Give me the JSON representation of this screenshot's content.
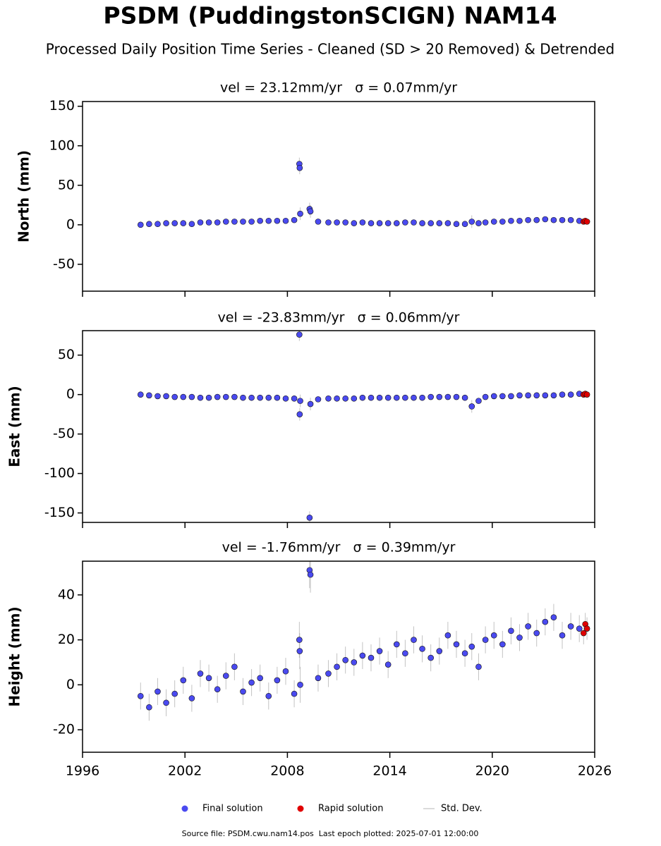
{
  "title": "PSDM (PuddingstonSCIGN) NAM14",
  "subtitle": "Processed Daily Position Time Series - Cleaned (SD > 20 Removed) & Detrended",
  "legend": [
    {
      "name": "Final solution",
      "color": "#4a4af0",
      "kind": "marker"
    },
    {
      "name": "Rapid solution",
      "color": "#e00000",
      "kind": "marker"
    },
    {
      "name": "Std. Dev.",
      "color": "#cfcfcf",
      "kind": "line"
    }
  ],
  "footer": "Source file: PSDM.cwu.nam14.pos  Last epoch plotted: 2025-07-01 12:00:00",
  "chart_data": [
    {
      "type": "scatter",
      "title": "vel = 23.12mm/yr   σ = 0.07mm/yr",
      "y_label": "North (mm)",
      "xlim": [
        1996,
        2026
      ],
      "xticks": [
        1996,
        2002,
        2008,
        2014,
        2020,
        2026
      ],
      "ylim": [
        -84,
        156
      ],
      "yticks": [
        -50,
        0,
        50,
        100,
        150
      ],
      "series": [
        {
          "color": "#4a4af0",
          "error_color": "#9a9a9a",
          "x": [
            1999.4,
            1999.9,
            2000.4,
            2000.9,
            2001.4,
            2001.9,
            2002.4,
            2002.9,
            2003.4,
            2003.9,
            2004.4,
            2004.9,
            2005.4,
            2005.9,
            2006.4,
            2006.9,
            2007.4,
            2007.9,
            2008.4,
            2008.7,
            2008.72,
            2008.75,
            2009.3,
            2009.35,
            2009.8,
            2010.4,
            2010.9,
            2011.4,
            2011.9,
            2012.4,
            2012.9,
            2013.4,
            2013.9,
            2014.4,
            2014.9,
            2015.4,
            2015.9,
            2016.4,
            2016.9,
            2017.4,
            2017.9,
            2018.4,
            2018.8,
            2019.2,
            2019.6,
            2020.1,
            2020.6,
            2021.1,
            2021.6,
            2022.1,
            2022.6,
            2023.1,
            2023.6,
            2024.1,
            2024.6,
            2025.1
          ],
          "values": [
            0,
            1,
            1,
            2,
            2,
            2,
            1,
            3,
            3,
            3,
            4,
            4,
            4,
            4,
            5,
            5,
            5,
            5,
            6,
            77,
            72,
            14,
            20,
            17,
            4,
            3,
            3,
            3,
            2,
            3,
            2,
            2,
            2,
            2,
            3,
            3,
            2,
            2,
            2,
            2,
            1,
            1,
            4,
            2,
            3,
            4,
            4,
            5,
            5,
            6,
            6,
            7,
            6,
            6,
            6,
            5
          ],
          "errors": [
            3,
            3,
            3,
            3,
            3,
            3,
            3,
            3,
            3,
            3,
            3,
            3,
            3,
            3,
            3,
            3,
            3,
            3,
            3,
            8,
            8,
            8,
            8,
            8,
            3,
            3,
            3,
            3,
            3,
            3,
            3,
            3,
            3,
            3,
            3,
            3,
            3,
            3,
            3,
            3,
            3,
            3,
            8,
            3,
            3,
            3,
            3,
            3,
            3,
            3,
            3,
            3,
            3,
            3,
            3,
            3
          ]
        },
        {
          "color": "#e00000",
          "error_color": "#9a9a9a",
          "x": [
            2025.35,
            2025.45,
            2025.55
          ],
          "values": [
            4,
            5,
            4
          ],
          "errors": [
            2,
            2,
            2
          ]
        }
      ]
    },
    {
      "type": "scatter",
      "title": "vel = -23.83mm/yr   σ = 0.06mm/yr",
      "y_label": "East (mm)",
      "xlim": [
        1996,
        2026
      ],
      "xticks": [
        1996,
        2002,
        2008,
        2014,
        2020,
        2026
      ],
      "ylim": [
        -162,
        81
      ],
      "yticks": [
        -150,
        -100,
        -50,
        0,
        50
      ],
      "series": [
        {
          "color": "#4a4af0",
          "error_color": "#9a9a9a",
          "x": [
            1999.4,
            1999.9,
            2000.4,
            2000.9,
            2001.4,
            2001.9,
            2002.4,
            2002.9,
            2003.4,
            2003.9,
            2004.4,
            2004.9,
            2005.4,
            2005.9,
            2006.4,
            2006.9,
            2007.4,
            2007.9,
            2008.4,
            2008.7,
            2008.72,
            2008.75,
            2009.3,
            2009.35,
            2009.8,
            2010.4,
            2010.9,
            2011.4,
            2011.9,
            2012.4,
            2012.9,
            2013.4,
            2013.9,
            2014.4,
            2014.9,
            2015.4,
            2015.9,
            2016.4,
            2016.9,
            2017.4,
            2017.9,
            2018.4,
            2018.8,
            2019.2,
            2019.6,
            2020.1,
            2020.6,
            2021.1,
            2021.6,
            2022.1,
            2022.6,
            2023.1,
            2023.6,
            2024.1,
            2024.6,
            2025.1
          ],
          "values": [
            0,
            -1,
            -2,
            -2,
            -3,
            -3,
            -3,
            -4,
            -4,
            -3,
            -3,
            -3,
            -4,
            -4,
            -4,
            -4,
            -4,
            -5,
            -5,
            76,
            -25,
            -8,
            -156,
            -12,
            -6,
            -5,
            -5,
            -5,
            -5,
            -4,
            -4,
            -4,
            -4,
            -4,
            -4,
            -4,
            -4,
            -3,
            -3,
            -3,
            -3,
            -4,
            -15,
            -8,
            -3,
            -2,
            -2,
            -2,
            -1,
            -1,
            -1,
            -1,
            -1,
            0,
            0,
            1
          ],
          "errors": [
            3,
            3,
            3,
            3,
            3,
            3,
            3,
            3,
            3,
            3,
            3,
            3,
            3,
            3,
            3,
            3,
            3,
            3,
            3,
            8,
            8,
            8,
            8,
            8,
            3,
            3,
            3,
            3,
            3,
            3,
            3,
            3,
            3,
            3,
            3,
            3,
            3,
            3,
            3,
            3,
            3,
            3,
            8,
            3,
            3,
            3,
            3,
            3,
            3,
            3,
            3,
            3,
            3,
            3,
            3,
            3
          ]
        },
        {
          "color": "#e00000",
          "error_color": "#9a9a9a",
          "x": [
            2025.35,
            2025.45,
            2025.55
          ],
          "values": [
            0,
            1,
            0
          ],
          "errors": [
            2,
            2,
            2
          ]
        }
      ]
    },
    {
      "type": "scatter",
      "title": "vel = -1.76mm/yr   σ = 0.39mm/yr",
      "y_label": "Height (mm)",
      "xlim": [
        1996,
        2026
      ],
      "xticks": [
        1996,
        2002,
        2008,
        2014,
        2020,
        2026
      ],
      "ylim": [
        -30,
        55
      ],
      "yticks": [
        -20,
        0,
        20,
        40
      ],
      "series": [
        {
          "color": "#4a4af0",
          "error_color": "#9a9a9a",
          "x": [
            1999.4,
            1999.9,
            2000.4,
            2000.9,
            2001.4,
            2001.9,
            2002.4,
            2002.9,
            2003.4,
            2003.9,
            2004.4,
            2004.9,
            2005.4,
            2005.9,
            2006.4,
            2006.9,
            2007.4,
            2007.9,
            2008.4,
            2008.7,
            2008.72,
            2008.75,
            2009.3,
            2009.35,
            2009.8,
            2010.4,
            2010.9,
            2011.4,
            2011.9,
            2012.4,
            2012.9,
            2013.4,
            2013.9,
            2014.4,
            2014.9,
            2015.4,
            2015.9,
            2016.4,
            2016.9,
            2017.4,
            2017.9,
            2018.4,
            2018.8,
            2019.2,
            2019.6,
            2020.1,
            2020.6,
            2021.1,
            2021.6,
            2022.1,
            2022.6,
            2023.1,
            2023.6,
            2024.1,
            2024.6,
            2025.1
          ],
          "values": [
            -5,
            -10,
            -3,
            -8,
            -4,
            2,
            -6,
            5,
            3,
            -2,
            4,
            8,
            -3,
            1,
            3,
            -5,
            2,
            6,
            -4,
            20,
            15,
            0,
            51,
            49,
            3,
            5,
            8,
            11,
            10,
            13,
            12,
            15,
            9,
            18,
            14,
            20,
            16,
            12,
            15,
            22,
            18,
            14,
            17,
            8,
            20,
            22,
            18,
            24,
            21,
            26,
            23,
            28,
            30,
            22,
            26,
            25
          ],
          "errors": [
            6,
            6,
            6,
            6,
            6,
            6,
            6,
            6,
            6,
            6,
            6,
            6,
            6,
            6,
            6,
            6,
            6,
            6,
            6,
            8,
            8,
            8,
            8,
            8,
            6,
            6,
            6,
            6,
            6,
            6,
            6,
            6,
            6,
            6,
            6,
            6,
            6,
            6,
            6,
            6,
            6,
            6,
            6,
            6,
            6,
            6,
            6,
            6,
            6,
            6,
            6,
            6,
            6,
            6,
            6,
            6
          ]
        },
        {
          "color": "#e00000",
          "error_color": "#9a9a9a",
          "x": [
            2025.35,
            2025.45,
            2025.55
          ],
          "values": [
            23,
            27,
            25
          ],
          "errors": [
            5,
            5,
            5
          ]
        }
      ]
    }
  ]
}
